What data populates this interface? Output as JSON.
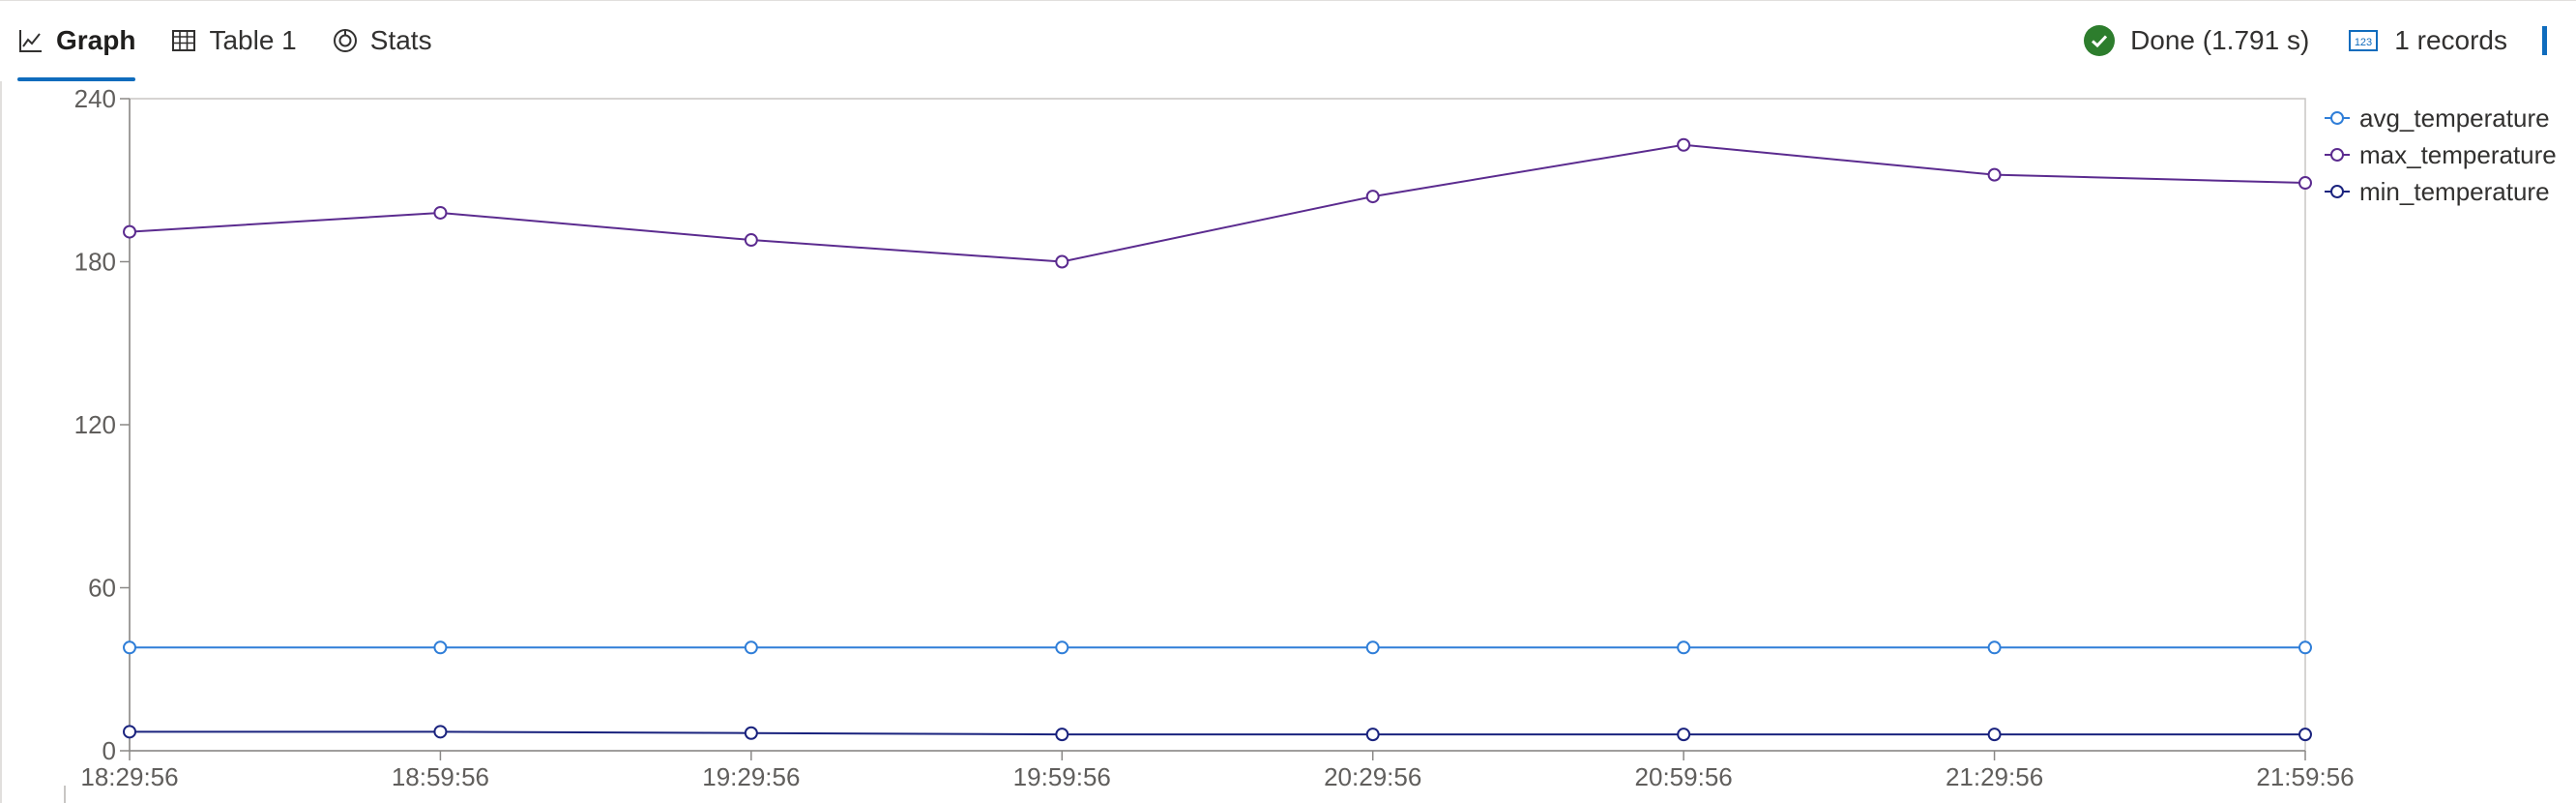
{
  "tabs": [
    {
      "label": "Graph",
      "icon": "line-chart-icon",
      "active": true
    },
    {
      "label": "Table 1",
      "icon": "table-icon",
      "active": false
    },
    {
      "label": "Stats",
      "icon": "stats-icon",
      "active": false
    }
  ],
  "status": {
    "done_label": "Done (1.791 s)",
    "records_label": "1 records",
    "success_color": "#2d7d2d",
    "accent_color": "#0f6cbd"
  },
  "chart_data": {
    "type": "line",
    "title": "",
    "xlabel": "",
    "ylabel": "",
    "x": [
      "18:29:56",
      "18:59:56",
      "19:29:56",
      "19:59:56",
      "20:29:56",
      "20:59:56",
      "21:29:56",
      "21:59:56"
    ],
    "ylim": [
      0,
      240
    ],
    "yticks": [
      0,
      60,
      120,
      180,
      240
    ],
    "grid": "horizontal",
    "legend": "right",
    "series": [
      {
        "name": "avg_temperature",
        "color": "#2f7ed8",
        "values": [
          38,
          38,
          38,
          38,
          38,
          38,
          38,
          38
        ]
      },
      {
        "name": "max_temperature",
        "color": "#5b2b8f",
        "values": [
          191,
          198,
          188,
          180,
          204,
          223,
          212,
          209
        ]
      },
      {
        "name": "min_temperature",
        "color": "#1a237e",
        "values": [
          7,
          7,
          6.5,
          6,
          6,
          6,
          6,
          6
        ]
      }
    ]
  }
}
